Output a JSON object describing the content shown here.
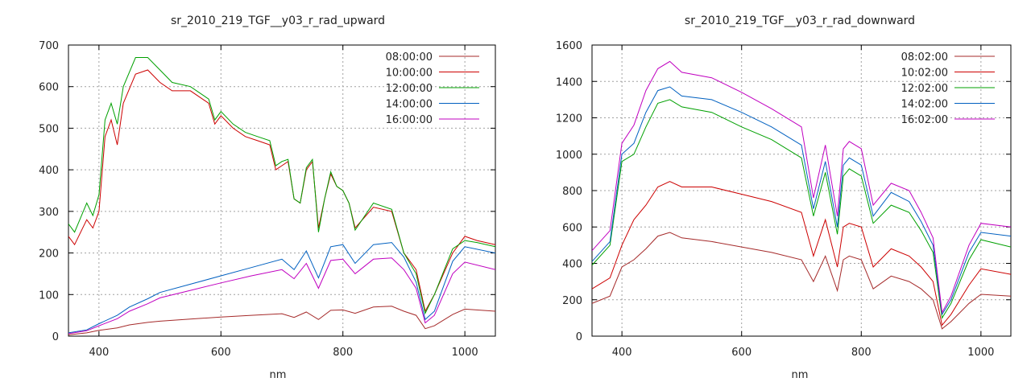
{
  "chart_data": [
    {
      "type": "line",
      "title": "sr_2010_219_TGF__y03_r_rad_upward",
      "xlabel": "nm",
      "ylabel": "",
      "xlim": [
        350,
        1050
      ],
      "ylim": [
        0,
        700
      ],
      "xticks": [
        400,
        600,
        800,
        1000
      ],
      "yticks": [
        0,
        100,
        200,
        300,
        400,
        500,
        600,
        700
      ],
      "grid": true,
      "legend_position": "top-right",
      "series": [
        {
          "name": "08:00:00",
          "color": "#a52a2a",
          "x": [
            350,
            380,
            400,
            430,
            450,
            480,
            500,
            550,
            600,
            650,
            700,
            720,
            740,
            760,
            780,
            800,
            820,
            850,
            880,
            900,
            920,
            935,
            950,
            980,
            1000,
            1050
          ],
          "y": [
            3,
            8,
            14,
            20,
            27,
            33,
            36,
            41,
            46,
            50,
            54,
            45,
            58,
            40,
            62,
            63,
            55,
            70,
            72,
            60,
            50,
            18,
            25,
            52,
            65,
            60
          ]
        },
        {
          "name": "10:00:00",
          "color": "#cc0000",
          "x": [
            350,
            360,
            380,
            390,
            400,
            410,
            420,
            430,
            440,
            460,
            480,
            500,
            520,
            550,
            580,
            590,
            600,
            620,
            640,
            660,
            680,
            690,
            700,
            710,
            720,
            730,
            740,
            750,
            760,
            770,
            780,
            790,
            800,
            810,
            820,
            850,
            880,
            900,
            920,
            935,
            950,
            980,
            1000,
            1020,
            1050
          ],
          "y": [
            240,
            220,
            280,
            260,
            300,
            480,
            520,
            460,
            560,
            630,
            640,
            610,
            590,
            590,
            560,
            510,
            530,
            500,
            480,
            470,
            460,
            400,
            410,
            420,
            330,
            320,
            400,
            420,
            260,
            330,
            390,
            360,
            350,
            320,
            260,
            310,
            300,
            200,
            160,
            60,
            100,
            200,
            240,
            230,
            220
          ]
        },
        {
          "name": "12:00:00",
          "color": "#00a000",
          "x": [
            350,
            360,
            380,
            390,
            400,
            410,
            420,
            430,
            440,
            460,
            480,
            500,
            520,
            550,
            580,
            590,
            600,
            620,
            640,
            660,
            680,
            690,
            700,
            710,
            720,
            730,
            740,
            750,
            760,
            770,
            780,
            790,
            800,
            810,
            820,
            850,
            880,
            900,
            920,
            935,
            950,
            980,
            1000,
            1020,
            1050
          ],
          "y": [
            270,
            250,
            320,
            290,
            340,
            520,
            560,
            510,
            600,
            670,
            670,
            640,
            610,
            600,
            570,
            520,
            540,
            510,
            490,
            480,
            470,
            410,
            420,
            425,
            330,
            320,
            405,
            425,
            250,
            330,
            395,
            360,
            350,
            320,
            255,
            320,
            305,
            200,
            150,
            55,
            100,
            210,
            230,
            225,
            215
          ]
        },
        {
          "name": "14:00:00",
          "color": "#0060c0",
          "x": [
            350,
            380,
            400,
            430,
            450,
            480,
            500,
            550,
            600,
            650,
            700,
            720,
            740,
            760,
            780,
            800,
            820,
            850,
            880,
            900,
            920,
            935,
            950,
            980,
            1000,
            1050
          ],
          "y": [
            8,
            15,
            30,
            50,
            70,
            90,
            105,
            125,
            145,
            165,
            185,
            160,
            205,
            140,
            215,
            220,
            175,
            220,
            225,
            190,
            130,
            40,
            60,
            180,
            215,
            200
          ]
        },
        {
          "name": "16:00:00",
          "color": "#c000c0",
          "x": [
            350,
            380,
            400,
            430,
            450,
            480,
            500,
            550,
            600,
            650,
            700,
            720,
            740,
            760,
            780,
            800,
            820,
            850,
            880,
            900,
            920,
            935,
            950,
            980,
            1000,
            1050
          ],
          "y": [
            6,
            13,
            25,
            42,
            60,
            78,
            92,
            110,
            128,
            145,
            160,
            138,
            175,
            115,
            182,
            185,
            150,
            185,
            188,
            160,
            115,
            32,
            50,
            150,
            178,
            160
          ]
        }
      ]
    },
    {
      "type": "line",
      "title": "sr_2010_219_TGF__y03_r_rad_downward",
      "xlabel": "nm",
      "ylabel": "",
      "xlim": [
        350,
        1050
      ],
      "ylim": [
        0,
        1600
      ],
      "xticks": [
        400,
        600,
        800,
        1000
      ],
      "yticks": [
        0,
        200,
        400,
        600,
        800,
        1000,
        1200,
        1400,
        1600
      ],
      "grid": true,
      "legend_position": "top-right",
      "series": [
        {
          "name": "08:02:00",
          "color": "#a52a2a",
          "x": [
            350,
            380,
            400,
            420,
            440,
            460,
            480,
            500,
            550,
            600,
            650,
            700,
            720,
            740,
            760,
            770,
            780,
            800,
            820,
            850,
            880,
            900,
            920,
            935,
            950,
            980,
            1000,
            1050
          ],
          "y": [
            180,
            220,
            380,
            420,
            480,
            550,
            570,
            540,
            520,
            490,
            460,
            420,
            300,
            440,
            250,
            420,
            440,
            420,
            260,
            330,
            300,
            260,
            200,
            40,
            80,
            180,
            230,
            220
          ]
        },
        {
          "name": "10:02:00",
          "color": "#cc0000",
          "x": [
            350,
            380,
            400,
            420,
            440,
            460,
            480,
            500,
            550,
            600,
            650,
            700,
            720,
            740,
            760,
            770,
            780,
            800,
            820,
            850,
            880,
            900,
            920,
            935,
            950,
            980,
            1000,
            1050
          ],
          "y": [
            260,
            320,
            500,
            640,
            720,
            820,
            850,
            820,
            820,
            780,
            740,
            680,
            440,
            640,
            380,
            600,
            620,
            600,
            380,
            480,
            440,
            380,
            300,
            60,
            120,
            280,
            370,
            340
          ]
        },
        {
          "name": "12:02:00",
          "color": "#00a000",
          "x": [
            350,
            380,
            400,
            420,
            440,
            460,
            480,
            500,
            550,
            600,
            650,
            700,
            720,
            740,
            760,
            770,
            780,
            800,
            820,
            850,
            880,
            900,
            920,
            935,
            950,
            980,
            1000,
            1050
          ],
          "y": [
            390,
            500,
            960,
            1000,
            1150,
            1280,
            1300,
            1260,
            1230,
            1150,
            1080,
            980,
            660,
            900,
            560,
            880,
            920,
            880,
            620,
            720,
            680,
            580,
            460,
            100,
            180,
            420,
            530,
            490
          ]
        },
        {
          "name": "14:02:00",
          "color": "#0060c0",
          "x": [
            350,
            380,
            400,
            420,
            440,
            460,
            480,
            500,
            550,
            600,
            650,
            700,
            720,
            740,
            760,
            770,
            780,
            800,
            820,
            850,
            880,
            900,
            920,
            935,
            950,
            980,
            1000,
            1050
          ],
          "y": [
            410,
            520,
            1000,
            1060,
            1230,
            1350,
            1370,
            1320,
            1300,
            1230,
            1150,
            1050,
            700,
            960,
            600,
            940,
            980,
            940,
            660,
            790,
            740,
            630,
            500,
            120,
            200,
            460,
            570,
            550
          ]
        },
        {
          "name": "16:02:00",
          "color": "#c000c0",
          "x": [
            350,
            380,
            400,
            420,
            440,
            460,
            480,
            500,
            550,
            600,
            650,
            700,
            720,
            740,
            760,
            770,
            780,
            800,
            820,
            850,
            880,
            900,
            920,
            935,
            950,
            980,
            1000,
            1050
          ],
          "y": [
            470,
            580,
            1060,
            1160,
            1350,
            1470,
            1510,
            1450,
            1420,
            1340,
            1250,
            1150,
            760,
            1050,
            660,
            1030,
            1070,
            1030,
            720,
            840,
            800,
            680,
            540,
            130,
            220,
            500,
            620,
            600
          ]
        }
      ]
    }
  ]
}
